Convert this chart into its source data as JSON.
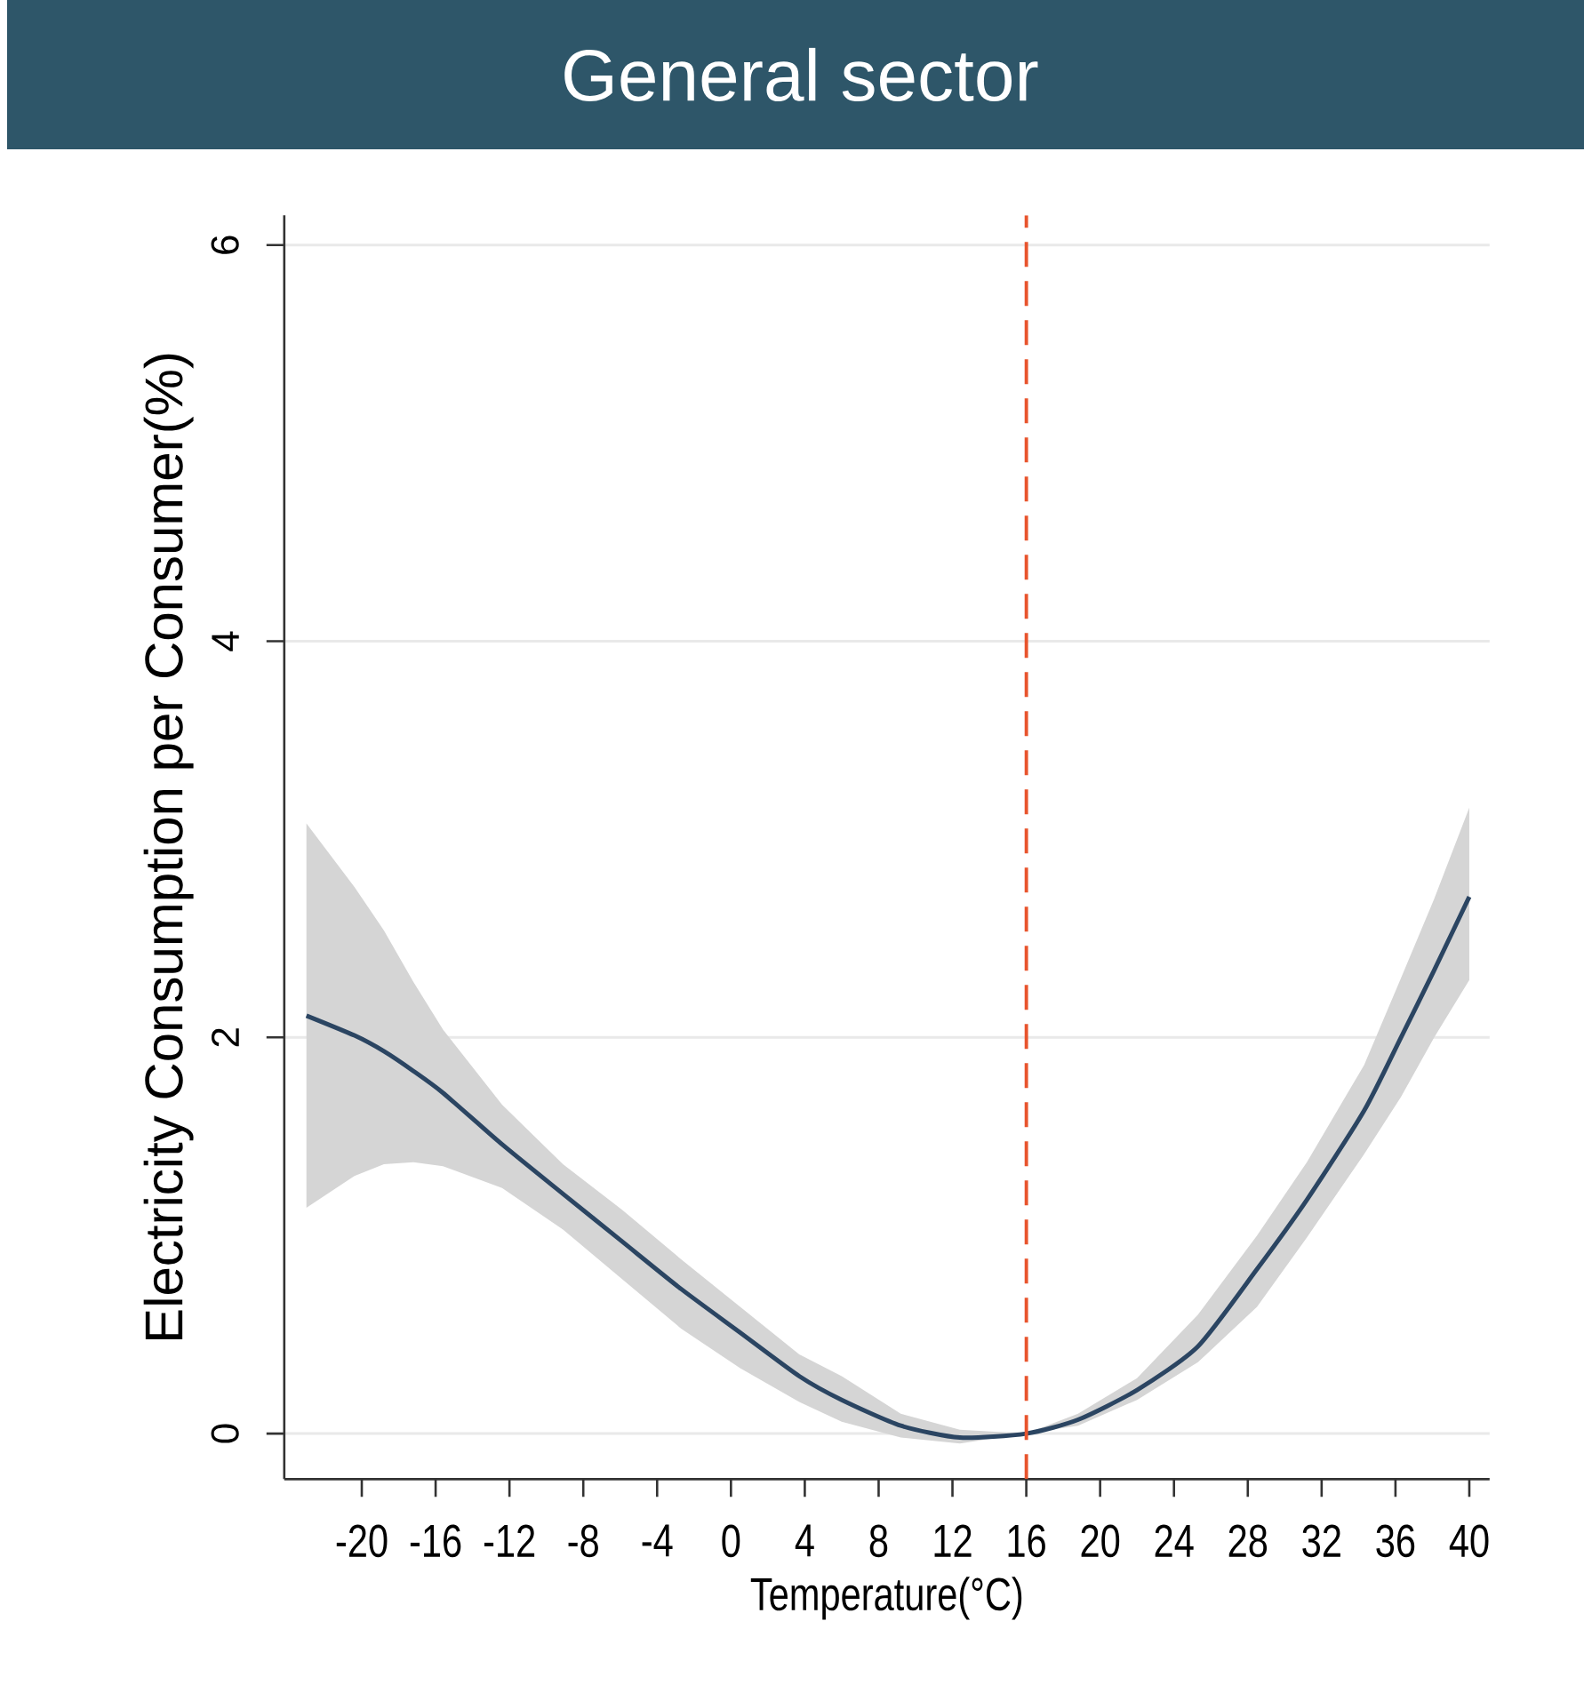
{
  "chart_data": {
    "type": "line",
    "title": "General sector",
    "xlabel": "Temperature(°C)",
    "ylabel": "Electricity Consumption per Consumer(%)",
    "x": [
      -23,
      -20.4,
      -18.8,
      -17.2,
      -15.6,
      -12.4,
      -9.1,
      -5.9,
      -2.7,
      0.5,
      3.7,
      6,
      9.2,
      12.4,
      16,
      18.8,
      22,
      25.3,
      28.5,
      31.2,
      34.3,
      36.3,
      38.1,
      40
    ],
    "series": [
      {
        "color": "#2b4562",
        "values": [
          2.11,
          2.01,
          1.93,
          1.83,
          1.72,
          1.46,
          1.21,
          0.97,
          0.73,
          0.51,
          0.29,
          0.17,
          0.04,
          -0.02,
          0,
          0.07,
          0.22,
          0.44,
          0.83,
          1.18,
          1.63,
          2.0,
          2.34,
          2.71
        ],
        "lower": [
          1.14,
          1.3,
          1.36,
          1.37,
          1.35,
          1.24,
          1.03,
          0.78,
          0.53,
          0.33,
          0.16,
          0.06,
          -0.02,
          -0.05,
          0,
          0.04,
          0.17,
          0.36,
          0.64,
          0.99,
          1.41,
          1.7,
          2.0,
          2.29
        ],
        "upper": [
          3.08,
          2.76,
          2.54,
          2.28,
          2.04,
          1.66,
          1.36,
          1.13,
          0.88,
          0.64,
          0.4,
          0.29,
          0.1,
          0.02,
          0,
          0.1,
          0.28,
          0.6,
          1.0,
          1.37,
          1.86,
          2.3,
          2.7,
          3.16
        ]
      }
    ],
    "xlim": [
      -24.2,
      41.1
    ],
    "ylim": [
      -0.23,
      6.15
    ],
    "xticks": [
      -20,
      -16,
      -12,
      -8,
      -4,
      0,
      4,
      8,
      12,
      16,
      20,
      24,
      28,
      32,
      36,
      40
    ],
    "yticks": [
      0,
      2,
      4,
      6
    ],
    "grid": "y",
    "ref_lines": [
      {
        "axis": "x",
        "value": 16,
        "color": "#e8542d",
        "line_style": "dashed"
      }
    ]
  }
}
